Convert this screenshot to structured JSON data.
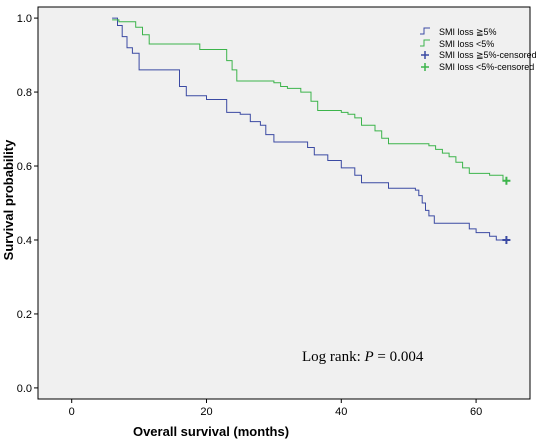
{
  "chart_data": {
    "type": "line",
    "title": "",
    "xlabel": "Overall survival (months)",
    "ylabel": "Survival probability",
    "xlim": [
      -5,
      68
    ],
    "ylim": [
      -0.03,
      1.03
    ],
    "xticks": [
      0,
      20,
      40,
      60
    ],
    "yticks": [
      0.0,
      0.2,
      0.4,
      0.6,
      0.8,
      1.0
    ],
    "ytick_labels": [
      "0.0",
      "0.2",
      "0.4",
      "0.6",
      "0.8",
      "1.0"
    ],
    "grid": false,
    "legend_position": "top-right",
    "series": [
      {
        "name": "SMI loss ≧5%",
        "color": "#3b4aa3",
        "step": true,
        "points": [
          [
            6,
            1.0
          ],
          [
            6.8,
            0.98
          ],
          [
            7.5,
            0.95
          ],
          [
            8.2,
            0.92
          ],
          [
            9,
            0.905
          ],
          [
            10,
            0.86
          ],
          [
            16,
            0.815
          ],
          [
            17,
            0.79
          ],
          [
            20,
            0.78
          ],
          [
            23,
            0.745
          ],
          [
            25,
            0.74
          ],
          [
            26.5,
            0.72
          ],
          [
            28,
            0.71
          ],
          [
            28.8,
            0.685
          ],
          [
            30,
            0.665
          ],
          [
            35,
            0.65
          ],
          [
            36,
            0.63
          ],
          [
            38,
            0.615
          ],
          [
            40,
            0.595
          ],
          [
            42,
            0.575
          ],
          [
            43,
            0.555
          ],
          [
            47,
            0.54
          ],
          [
            51,
            0.535
          ],
          [
            51.5,
            0.52
          ],
          [
            52,
            0.5
          ],
          [
            52.5,
            0.48
          ],
          [
            53,
            0.465
          ],
          [
            53.8,
            0.445
          ],
          [
            59,
            0.43
          ],
          [
            60,
            0.42
          ],
          [
            62,
            0.41
          ],
          [
            63,
            0.4
          ],
          [
            64.5,
            0.4
          ]
        ]
      },
      {
        "name": "SMI loss <5%",
        "color": "#3cb44b",
        "step": true,
        "points": [
          [
            6,
            0.995
          ],
          [
            7,
            0.99
          ],
          [
            9.5,
            0.975
          ],
          [
            10.5,
            0.955
          ],
          [
            11.5,
            0.93
          ],
          [
            19,
            0.915
          ],
          [
            23,
            0.885
          ],
          [
            23.8,
            0.86
          ],
          [
            24.5,
            0.83
          ],
          [
            30,
            0.825
          ],
          [
            31,
            0.815
          ],
          [
            32,
            0.81
          ],
          [
            34,
            0.8
          ],
          [
            35.5,
            0.775
          ],
          [
            36.5,
            0.75
          ],
          [
            40,
            0.745
          ],
          [
            41,
            0.74
          ],
          [
            42,
            0.73
          ],
          [
            43,
            0.71
          ],
          [
            45,
            0.695
          ],
          [
            46,
            0.675
          ],
          [
            47,
            0.66
          ],
          [
            53,
            0.655
          ],
          [
            54,
            0.645
          ],
          [
            55,
            0.635
          ],
          [
            56,
            0.625
          ],
          [
            57,
            0.61
          ],
          [
            58,
            0.595
          ],
          [
            59,
            0.58
          ],
          [
            62,
            0.575
          ],
          [
            64,
            0.56
          ],
          [
            64.5,
            0.56
          ]
        ]
      }
    ],
    "censored_marks": [
      {
        "name": "SMI loss ≧5%-censored",
        "color": "#3b4aa3",
        "x": 64.5,
        "y": 0.4
      },
      {
        "name": "SMI loss <5%-censored",
        "color": "#3cb44b",
        "x": 64.5,
        "y": 0.56
      }
    ],
    "annotation": {
      "prefix": "Log rank: ",
      "italic": "P",
      "suffix": " = 0.004"
    }
  }
}
